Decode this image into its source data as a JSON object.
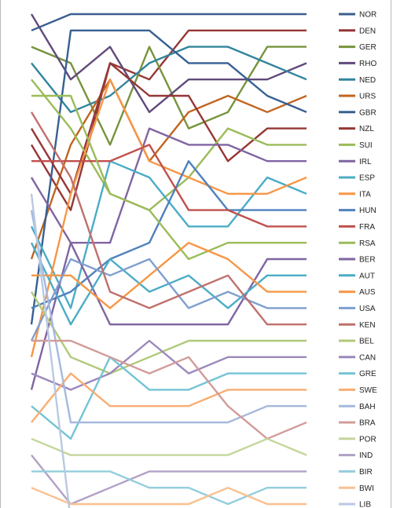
{
  "chart_data": {
    "type": "line",
    "title": "",
    "xlabel": "",
    "ylabel": "",
    "x": [
      1,
      2,
      3,
      4,
      5,
      6,
      7,
      8
    ],
    "ylim": [
      1,
      31
    ],
    "y_inverted": true,
    "grid": false,
    "legend_position": "right",
    "series": [
      {
        "name": "NOR",
        "color": "#3a5f8f",
        "values": [
          2,
          1,
          1,
          1,
          1,
          1,
          1,
          1
        ]
      },
      {
        "name": "DEN",
        "color": "#953735",
        "values": [
          9,
          13,
          4,
          5,
          2,
          2,
          2,
          2
        ]
      },
      {
        "name": "GER",
        "color": "#77933c",
        "values": [
          3,
          4,
          9,
          3,
          8,
          7,
          3,
          3
        ]
      },
      {
        "name": "RHO",
        "color": "#604a7b",
        "values": [
          1,
          5,
          3,
          7,
          5,
          5,
          5,
          4
        ]
      },
      {
        "name": "NED",
        "color": "#31859c",
        "values": [
          4,
          7,
          6,
          4,
          3,
          3,
          4,
          5
        ]
      },
      {
        "name": "URS",
        "color": "#c0651f",
        "values": [
          16,
          9,
          5,
          10,
          7,
          6,
          7,
          6
        ]
      },
      {
        "name": "GBR",
        "color": "#376092",
        "values": [
          20,
          2,
          2,
          2,
          4,
          4,
          6,
          7
        ]
      },
      {
        "name": "NZL",
        "color": "#953735",
        "values": [
          8,
          12,
          4,
          6,
          6,
          10,
          8,
          8
        ]
      },
      {
        "name": "SUI",
        "color": "#9bbb59",
        "values": [
          5,
          8,
          12,
          13,
          11,
          8,
          9,
          9
        ]
      },
      {
        "name": "IRL",
        "color": "#8064a2",
        "values": [
          11,
          15,
          15,
          8,
          9,
          9,
          10,
          10
        ]
      },
      {
        "name": "ESP",
        "color": "#4bacc6",
        "values": [
          14,
          19,
          10,
          11,
          14,
          14,
          11,
          12
        ]
      },
      {
        "name": "ITA",
        "color": "#f79646",
        "values": [
          22,
          12,
          5,
          10,
          11,
          12,
          12,
          11
        ]
      },
      {
        "name": "HUN",
        "color": "#4f81bd",
        "values": [
          19,
          18,
          16,
          15,
          10,
          13,
          13,
          13
        ]
      },
      {
        "name": "FRA",
        "color": "#c0504d",
        "values": [
          10,
          10,
          10,
          9,
          13,
          13,
          14,
          14
        ]
      },
      {
        "name": "RSA",
        "color": "#9bbb59",
        "values": [
          6,
          6,
          12,
          13,
          16,
          15,
          15,
          15
        ]
      },
      {
        "name": "BER",
        "color": "#8064a2",
        "values": [
          24,
          15,
          20,
          20,
          20,
          20,
          16,
          16
        ]
      },
      {
        "name": "AUT",
        "color": "#4bacc6",
        "values": [
          15,
          20,
          16,
          18,
          17,
          19,
          17,
          17
        ]
      },
      {
        "name": "AUS",
        "color": "#f79646",
        "values": [
          17,
          17,
          19,
          17,
          15,
          16,
          18,
          18
        ]
      },
      {
        "name": "USA",
        "color": "#7f9fcf",
        "values": [
          21,
          16,
          17,
          16,
          19,
          18,
          19,
          19
        ]
      },
      {
        "name": "KEN",
        "color": "#c0706d",
        "values": [
          7,
          11,
          18,
          19,
          18,
          17,
          20,
          20
        ]
      },
      {
        "name": "BEL",
        "color": "#b0c97a",
        "values": [
          18,
          22,
          23,
          22,
          21,
          21,
          21,
          21
        ]
      },
      {
        "name": "CAN",
        "color": "#9c88bc",
        "values": [
          23,
          24,
          23,
          21,
          23,
          22,
          22,
          22
        ]
      },
      {
        "name": "GRE",
        "color": "#74c4d6",
        "values": [
          25,
          27,
          22,
          24,
          24,
          23,
          23,
          23
        ]
      },
      {
        "name": "SWE",
        "color": "#f9ad71",
        "values": [
          26,
          23,
          25,
          25,
          25,
          24,
          24,
          24
        ]
      },
      {
        "name": "BAH",
        "color": "#a5b9dd",
        "values": [
          13,
          26,
          26,
          26,
          26,
          26,
          25,
          25
        ]
      },
      {
        "name": "BRA",
        "color": "#d19c9a",
        "values": [
          21,
          21,
          22,
          23,
          22,
          25,
          27,
          26
        ]
      },
      {
        "name": "POR",
        "color": "#c3d69b",
        "values": [
          27,
          28,
          28,
          28,
          28,
          28,
          27,
          28
        ]
      },
      {
        "name": "IND",
        "color": "#b2a1c7",
        "values": [
          28,
          31,
          30,
          29,
          29,
          29,
          29,
          29
        ]
      },
      {
        "name": "BIR",
        "color": "#93cddd",
        "values": [
          29,
          29,
          29,
          30,
          30,
          31,
          30,
          30
        ]
      },
      {
        "name": "BWI",
        "color": "#fac090",
        "values": [
          30,
          31,
          31,
          31,
          31,
          30,
          31,
          31
        ]
      },
      {
        "name": "LIB",
        "color": "#b9c9e2",
        "values": [
          12,
          32,
          32,
          32,
          32,
          32,
          32,
          32
        ]
      }
    ]
  }
}
